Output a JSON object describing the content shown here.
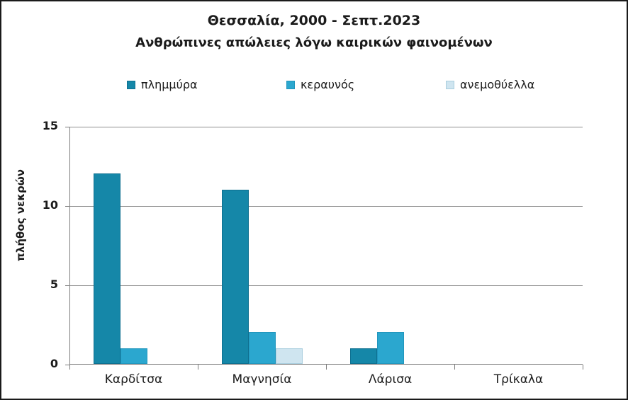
{
  "chart_data": {
    "type": "bar",
    "title": "Θεσσαλία, 2000 - Σεπτ.2023",
    "subtitle": "Ανθρώπινες απώλειες λόγω καιρικών φαινομένων",
    "ylabel": "πλήθος νεκρών",
    "xlabel": "",
    "categories": [
      "Καρδίτσα",
      "Μαγνησία",
      "Λάρισα",
      "Τρίκαλα"
    ],
    "series": [
      {
        "name": "πλημμύρα",
        "color": "#1587a8",
        "border_color": "#0e7090",
        "values": [
          12,
          11,
          1,
          0
        ]
      },
      {
        "name": "κεραυνός",
        "color": "#2ba7cf",
        "border_color": "#2196bd",
        "values": [
          1,
          2,
          2,
          0
        ]
      },
      {
        "name": "ανεμοθύελλα",
        "color": "#cfe5f0",
        "border_color": "#a9cede",
        "values": [
          0,
          1,
          0,
          0
        ]
      }
    ],
    "ylim": [
      0,
      15
    ],
    "yticks": [
      0,
      5,
      10,
      15
    ],
    "grid": true,
    "legend_position": "top",
    "grid_color": "#8e8e8e",
    "axis_color": "#7d7d7d",
    "text_color": "#1b1b1b"
  }
}
